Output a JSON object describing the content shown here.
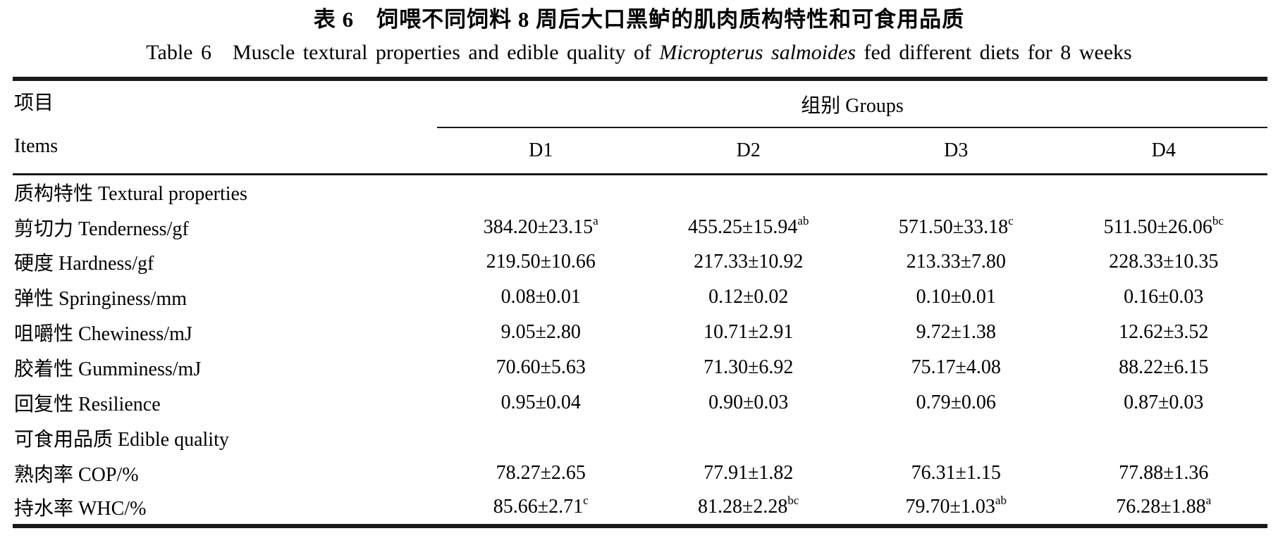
{
  "title": {
    "zh": "表 6　饲喂不同饲料 8 周后大口黑鲈的肌肉质构特性和可食用品质",
    "en_prefix": "Table 6　Muscle textural properties and edible quality of ",
    "en_species": "Micropterus salmoides",
    "en_suffix": " fed different diets for 8 weeks"
  },
  "header": {
    "items_zh": "项目",
    "items_en": "Items",
    "groups": "组别 Groups"
  },
  "chart_data": {
    "type": "table",
    "columns": [
      "D1",
      "D2",
      "D3",
      "D4"
    ],
    "rows": [
      {
        "kind": "section",
        "label": "质构特性 Textural properties"
      },
      {
        "kind": "data",
        "label": "剪切力 Tenderness/gf",
        "values": [
          {
            "text": "384.20±23.15",
            "sup": "a"
          },
          {
            "text": "455.25±15.94",
            "sup": "ab"
          },
          {
            "text": "571.50±33.18",
            "sup": "c"
          },
          {
            "text": "511.50±26.06",
            "sup": "bc"
          }
        ]
      },
      {
        "kind": "data",
        "label": "硬度 Hardness/gf",
        "values": [
          {
            "text": "219.50±10.66",
            "sup": ""
          },
          {
            "text": "217.33±10.92",
            "sup": ""
          },
          {
            "text": "213.33±7.80",
            "sup": ""
          },
          {
            "text": "228.33±10.35",
            "sup": ""
          }
        ]
      },
      {
        "kind": "data",
        "label": "弹性 Springiness/mm",
        "values": [
          {
            "text": "0.08±0.01",
            "sup": ""
          },
          {
            "text": "0.12±0.02",
            "sup": ""
          },
          {
            "text": "0.10±0.01",
            "sup": ""
          },
          {
            "text": "0.16±0.03",
            "sup": ""
          }
        ]
      },
      {
        "kind": "data",
        "label": "咀嚼性 Chewiness/mJ",
        "values": [
          {
            "text": "9.05±2.80",
            "sup": ""
          },
          {
            "text": "10.71±2.91",
            "sup": ""
          },
          {
            "text": "9.72±1.38",
            "sup": ""
          },
          {
            "text": "12.62±3.52",
            "sup": ""
          }
        ]
      },
      {
        "kind": "data",
        "label": "胶着性 Gumminess/mJ",
        "values": [
          {
            "text": "70.60±5.63",
            "sup": ""
          },
          {
            "text": "71.30±6.92",
            "sup": ""
          },
          {
            "text": "75.17±4.08",
            "sup": ""
          },
          {
            "text": "88.22±6.15",
            "sup": ""
          }
        ]
      },
      {
        "kind": "data",
        "label": "回复性 Resilience",
        "values": [
          {
            "text": "0.95±0.04",
            "sup": ""
          },
          {
            "text": "0.90±0.03",
            "sup": ""
          },
          {
            "text": "0.79±0.06",
            "sup": ""
          },
          {
            "text": "0.87±0.03",
            "sup": ""
          }
        ]
      },
      {
        "kind": "section",
        "label": "可食用品质 Edible quality"
      },
      {
        "kind": "data",
        "label": "熟肉率 COP/%",
        "values": [
          {
            "text": "78.27±2.65",
            "sup": ""
          },
          {
            "text": "77.91±1.82",
            "sup": ""
          },
          {
            "text": "76.31±1.15",
            "sup": ""
          },
          {
            "text": "77.88±1.36",
            "sup": ""
          }
        ]
      },
      {
        "kind": "data",
        "label": "持水率 WHC/%",
        "values": [
          {
            "text": "85.66±2.71",
            "sup": "c"
          },
          {
            "text": "81.28±2.28",
            "sup": "bc"
          },
          {
            "text": "79.70±1.03",
            "sup": "ab"
          },
          {
            "text": "76.28±1.88",
            "sup": "a"
          }
        ]
      }
    ]
  },
  "colors": {
    "text": "#000000",
    "rule": "#1a1a1a",
    "background": "#ffffff"
  }
}
